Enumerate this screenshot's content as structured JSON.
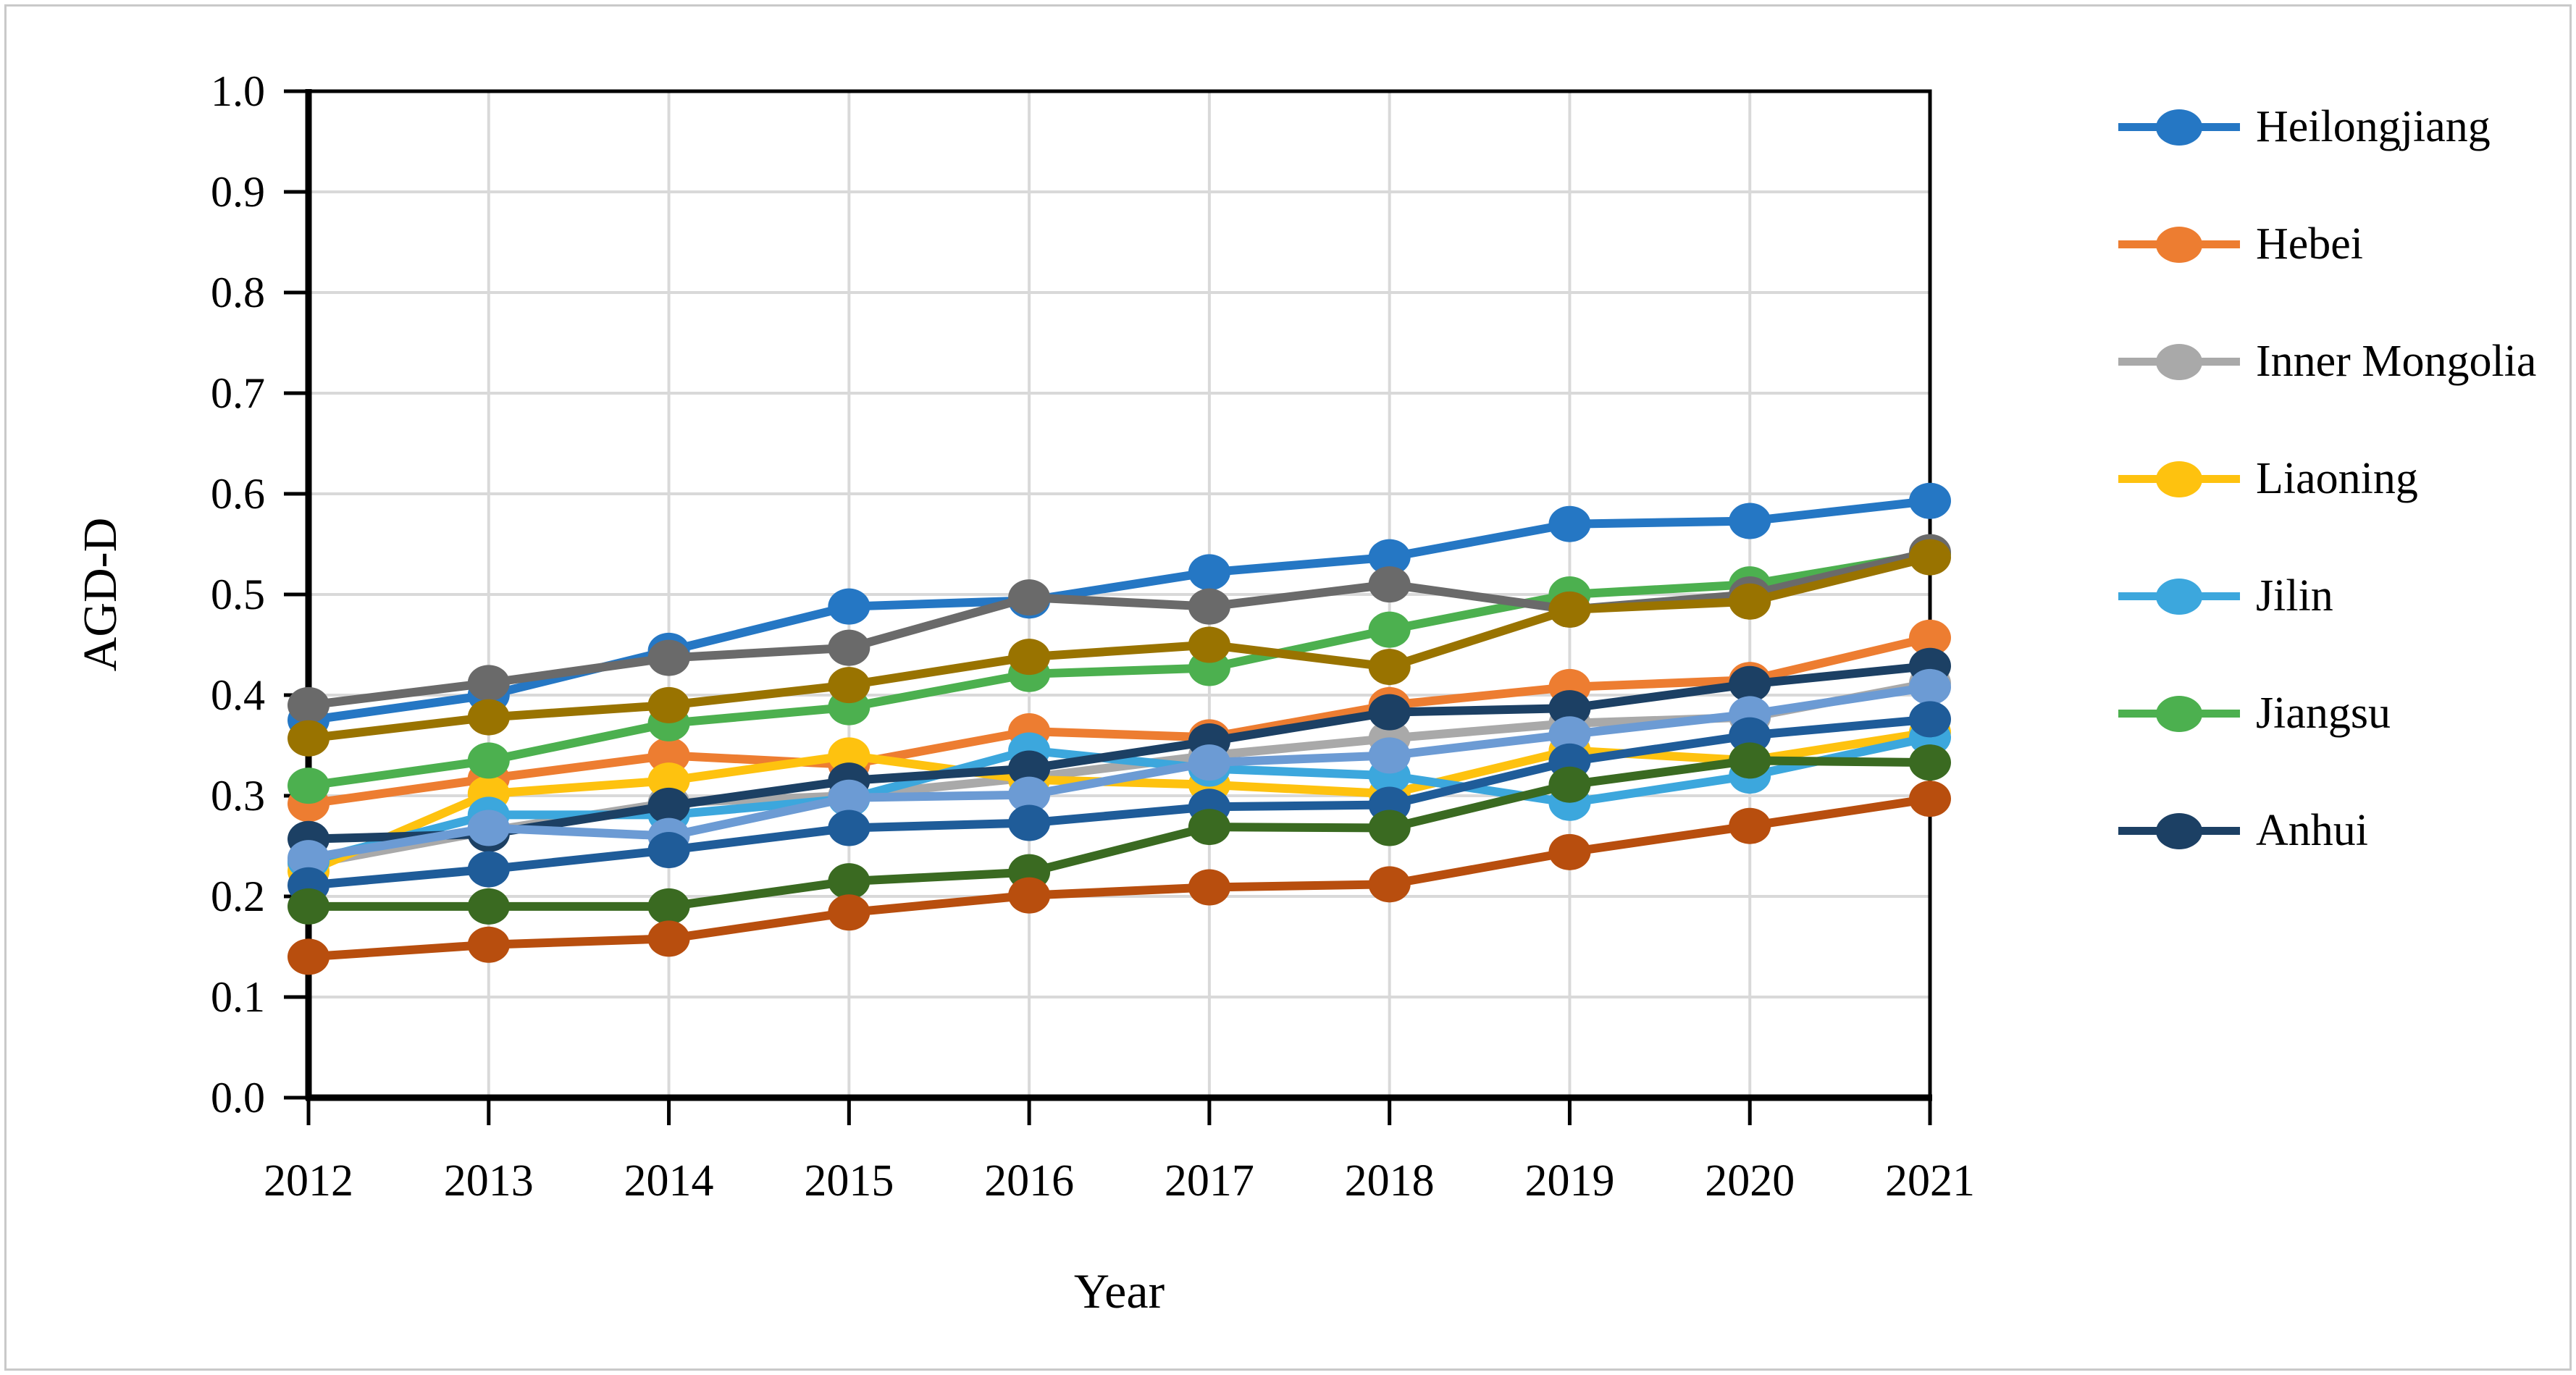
{
  "figure": {
    "background": "#ffffff",
    "border_color": "#c9c9c9"
  },
  "chart_data": {
    "type": "line",
    "title": "",
    "xlabel": "Year",
    "ylabel": "AGD-D",
    "x": [
      2012,
      2013,
      2014,
      2015,
      2016,
      2017,
      2018,
      2019,
      2020,
      2021
    ],
    "ylim": [
      0.0,
      1.0
    ],
    "y_ticks": [
      "0.0",
      "0.1",
      "0.2",
      "0.3",
      "0.4",
      "0.5",
      "0.6",
      "0.7",
      "0.8",
      "0.9",
      "1.0"
    ],
    "grid": "horizontal and vertical, light gray",
    "grid_color": "#d9d9d9",
    "legend_position": "right",
    "marker": "filled circle",
    "series": [
      {
        "name": "Heilongjiang",
        "color": "#2577c4",
        "in_legend": true,
        "values": [
          0.375,
          0.4,
          0.444,
          0.488,
          0.494,
          0.522,
          0.537,
          0.57,
          0.573,
          0.593
        ]
      },
      {
        "name": "Hebei",
        "color": "#ed7d31",
        "in_legend": true,
        "values": [
          0.292,
          0.317,
          0.34,
          0.331,
          0.364,
          0.358,
          0.39,
          0.408,
          0.415,
          0.457
        ]
      },
      {
        "name": "Inner Mongolia",
        "color": "#a9a9a9",
        "in_legend": true,
        "values": [
          0.232,
          0.265,
          0.293,
          0.3,
          0.318,
          0.34,
          0.357,
          0.372,
          0.378,
          0.412
        ]
      },
      {
        "name": "Liaoning",
        "color": "#fec20f",
        "in_legend": true,
        "values": [
          0.225,
          0.302,
          0.315,
          0.34,
          0.316,
          0.311,
          0.302,
          0.345,
          0.335,
          0.363
        ]
      },
      {
        "name": "Jilin",
        "color": "#3ca7dd",
        "in_legend": true,
        "values": [
          0.235,
          0.281,
          0.281,
          0.297,
          0.345,
          0.327,
          0.32,
          0.293,
          0.32,
          0.358
        ]
      },
      {
        "name": "Jiangsu",
        "color": "#4cb04f",
        "in_legend": true,
        "values": [
          0.31,
          0.335,
          0.372,
          0.388,
          0.421,
          0.427,
          0.465,
          0.5,
          0.51,
          0.54
        ]
      },
      {
        "name": "Anhui",
        "color": "#1c4064",
        "in_legend": true,
        "values": [
          0.257,
          0.262,
          0.29,
          0.315,
          0.327,
          0.354,
          0.383,
          0.387,
          0.411,
          0.429
        ]
      },
      {
        "name": "unlabeled-dark-gray",
        "color": "#6a6a6a",
        "in_legend": false,
        "values": [
          0.39,
          0.412,
          0.437,
          0.447,
          0.497,
          0.488,
          0.51,
          0.485,
          0.5,
          0.542
        ]
      },
      {
        "name": "unlabeled-dark-gold",
        "color": "#997300",
        "in_legend": false,
        "values": [
          0.357,
          0.378,
          0.39,
          0.41,
          0.438,
          0.45,
          0.428,
          0.485,
          0.493,
          0.537
        ]
      },
      {
        "name": "unlabeled-cornflower-blue",
        "color": "#6c9bd4",
        "in_legend": false,
        "values": [
          0.238,
          0.268,
          0.26,
          0.298,
          0.301,
          0.333,
          0.34,
          0.361,
          0.381,
          0.408
        ]
      },
      {
        "name": "unlabeled-steel-blue",
        "color": "#1f5c99",
        "in_legend": false,
        "values": [
          0.211,
          0.227,
          0.246,
          0.268,
          0.273,
          0.289,
          0.291,
          0.334,
          0.36,
          0.376
        ]
      },
      {
        "name": "unlabeled-dark-green",
        "color": "#3a6a21",
        "in_legend": false,
        "values": [
          0.19,
          0.19,
          0.19,
          0.215,
          0.224,
          0.269,
          0.268,
          0.311,
          0.335,
          0.333
        ]
      },
      {
        "name": "unlabeled-brown",
        "color": "#b84e0e",
        "in_legend": false,
        "values": [
          0.14,
          0.152,
          0.158,
          0.184,
          0.201,
          0.209,
          0.212,
          0.244,
          0.27,
          0.297
        ]
      }
    ]
  },
  "legend": {
    "labels": [
      "Heilongjiang",
      "Hebei",
      "Inner Mongolia",
      "Liaoning",
      "Jilin",
      "Jiangsu",
      "Anhui"
    ]
  }
}
